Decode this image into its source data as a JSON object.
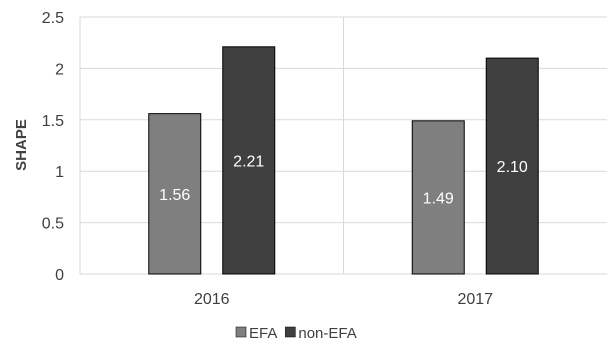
{
  "chart_data": {
    "type": "bar",
    "title": "",
    "xlabel": "",
    "ylabel": "SHAPE",
    "categories": [
      "2016",
      "2017"
    ],
    "series": [
      {
        "name": "EFA",
        "values": [
          1.56,
          1.49
        ],
        "labels": [
          "1.56",
          "1.49"
        ],
        "color": "#7f7f7f"
      },
      {
        "name": "non-EFA",
        "values": [
          2.21,
          2.1
        ],
        "labels": [
          "2.21",
          "2.10"
        ],
        "color": "#404040"
      }
    ],
    "ylim": [
      0,
      2.5
    ],
    "yticks": [
      "0",
      "0.5",
      "1",
      "1.5",
      "2",
      "2.5"
    ],
    "grid": true,
    "legend_position": "bottom",
    "gridline_color": "#d9d9d9",
    "bar_border_color": "#000000"
  }
}
